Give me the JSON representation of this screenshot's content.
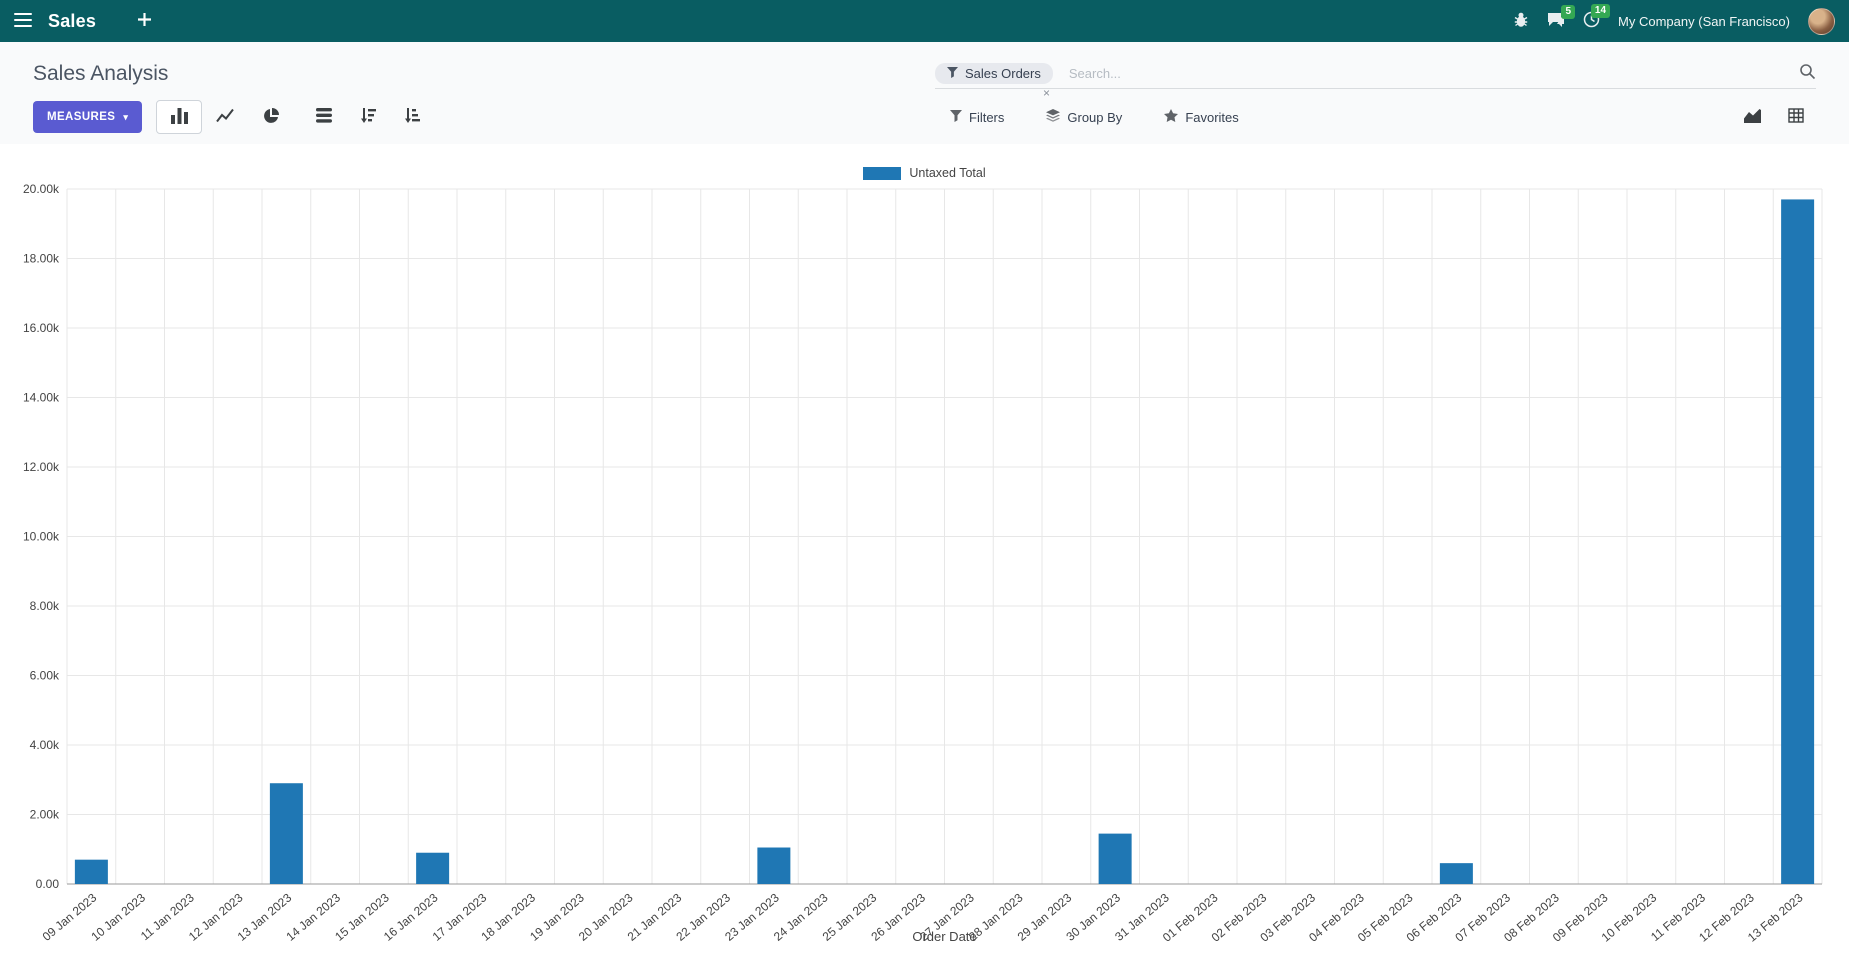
{
  "colors": {
    "navbar_bg": "#095d62",
    "accent": "#5a5bd1",
    "badge_green": "#34a853",
    "control_panel_bg": "#f9fafb",
    "bar_blue": "#1f77b4"
  },
  "navbar": {
    "app_name": "Sales",
    "company": "My Company (San Francisco)",
    "messages_badge": "5",
    "activities_badge": "14"
  },
  "control_panel": {
    "title": "Sales Analysis",
    "search": {
      "facet_label": "Sales Orders",
      "placeholder": "Search...",
      "remove_symbol": "×"
    },
    "measures_label": "MEASURES",
    "filters_label": "Filters",
    "group_by_label": "Group By",
    "favorites_label": "Favorites"
  },
  "icons": {
    "caret-down": "▾",
    "facet-remove": "×"
  },
  "chart_data": {
    "type": "bar",
    "title": "",
    "xlabel": "Order Date",
    "ylabel": "",
    "ylim": [
      0,
      20000
    ],
    "ytick_step": 2000,
    "grid": true,
    "legend_position": "top",
    "categories": [
      "09 Jan 2023",
      "10 Jan 2023",
      "11 Jan 2023",
      "12 Jan 2023",
      "13 Jan 2023",
      "14 Jan 2023",
      "15 Jan 2023",
      "16 Jan 2023",
      "17 Jan 2023",
      "18 Jan 2023",
      "19 Jan 2023",
      "20 Jan 2023",
      "21 Jan 2023",
      "22 Jan 2023",
      "23 Jan 2023",
      "24 Jan 2023",
      "25 Jan 2023",
      "26 Jan 2023",
      "27 Jan 2023",
      "28 Jan 2023",
      "29 Jan 2023",
      "30 Jan 2023",
      "31 Jan 2023",
      "01 Feb 2023",
      "02 Feb 2023",
      "03 Feb 2023",
      "04 Feb 2023",
      "05 Feb 2023",
      "06 Feb 2023",
      "07 Feb 2023",
      "08 Feb 2023",
      "09 Feb 2023",
      "10 Feb 2023",
      "11 Feb 2023",
      "12 Feb 2023",
      "13 Feb 2023"
    ],
    "series": [
      {
        "name": "Untaxed Total",
        "color": "#1f77b4",
        "values": [
          700,
          0,
          0,
          0,
          2900,
          0,
          0,
          900,
          0,
          0,
          0,
          0,
          0,
          0,
          1050,
          0,
          0,
          0,
          0,
          0,
          0,
          1450,
          0,
          0,
          0,
          0,
          0,
          0,
          600,
          0,
          0,
          0,
          0,
          0,
          0,
          19700
        ]
      }
    ]
  }
}
